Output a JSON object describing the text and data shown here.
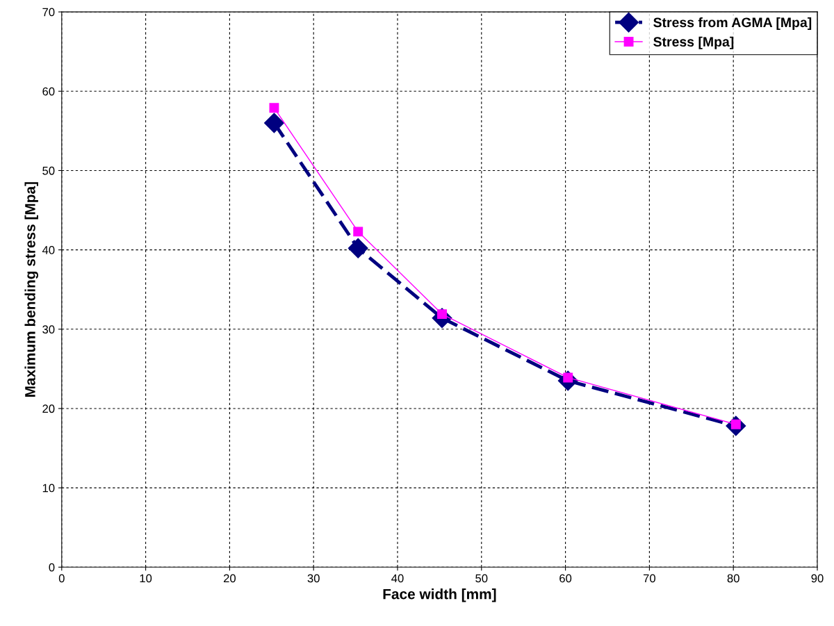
{
  "chart_data": {
    "type": "line",
    "xlabel": "Face width [mm]",
    "ylabel": "Maximum bending stress [Mpa]",
    "xlim": [
      0,
      90
    ],
    "xticks": [
      0,
      10,
      20,
      30,
      40,
      50,
      60,
      70,
      80,
      90
    ],
    "ylim": [
      0,
      70
    ],
    "yticks": [
      0,
      10,
      20,
      30,
      40,
      50,
      60,
      70
    ],
    "grid": true,
    "legend": "top right",
    "series": [
      {
        "name": "Stress from AGMA [Mpa]",
        "color": "#000080",
        "marker": "diamond",
        "line_style": "dashed",
        "x": [
          25.3,
          35.3,
          45.3,
          60.3,
          80.3
        ],
        "values": [
          56.0,
          40.2,
          31.4,
          23.5,
          17.8
        ]
      },
      {
        "name": "Stress [Mpa]",
        "color": "#ff00ff",
        "marker": "square",
        "line_style": "solid",
        "x": [
          25.3,
          35.3,
          45.3,
          60.3,
          80.3
        ],
        "values": [
          57.9,
          42.3,
          31.9,
          23.9,
          18.0
        ]
      }
    ]
  }
}
